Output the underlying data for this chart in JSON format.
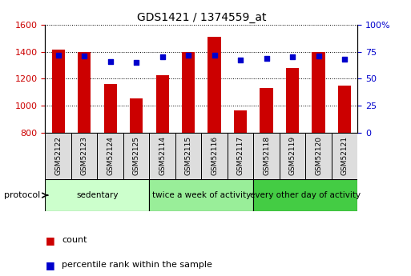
{
  "title": "GDS1421 / 1374559_at",
  "samples": [
    "GSM52122",
    "GSM52123",
    "GSM52124",
    "GSM52125",
    "GSM52114",
    "GSM52115",
    "GSM52116",
    "GSM52117",
    "GSM52118",
    "GSM52119",
    "GSM52120",
    "GSM52121"
  ],
  "counts": [
    1415,
    1400,
    1163,
    1055,
    1225,
    1400,
    1510,
    965,
    1130,
    1280,
    1400,
    1150
  ],
  "percentiles": [
    72,
    71,
    66,
    65,
    70,
    72,
    72,
    67,
    69,
    70,
    71,
    68
  ],
  "ylim_left": [
    800,
    1600
  ],
  "ylim_right": [
    0,
    100
  ],
  "yticks_left": [
    800,
    1000,
    1200,
    1400,
    1600
  ],
  "yticks_right": [
    0,
    25,
    50,
    75,
    100
  ],
  "bar_color": "#cc0000",
  "dot_color": "#0000cc",
  "bar_bottom": 800,
  "groups": [
    {
      "label": "sedentary",
      "start": 0,
      "end": 4,
      "color": "#ccffcc"
    },
    {
      "label": "twice a week of activity",
      "start": 4,
      "end": 8,
      "color": "#99ee99"
    },
    {
      "label": "every other day of activity",
      "start": 8,
      "end": 12,
      "color": "#44cc44"
    }
  ],
  "protocol_label": "protocol",
  "legend_count_label": "count",
  "legend_pct_label": "percentile rank within the sample",
  "tick_label_color_left": "#cc0000",
  "tick_label_color_right": "#0000cc",
  "sample_box_color": "#dddddd",
  "bar_width": 0.5
}
